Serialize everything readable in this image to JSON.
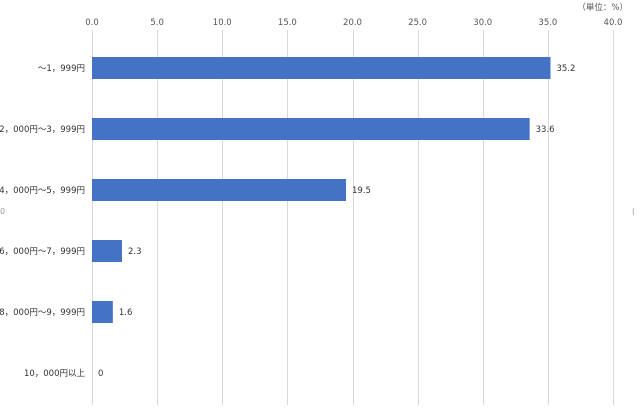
{
  "chart_data": {
    "type": "bar",
    "orientation": "horizontal",
    "unit_label": "（単位：%）",
    "categories": [
      "～1，999円",
      "2，000円～3，999円",
      "4，000円～5，999円",
      "6，000円～7，999円",
      "8，000円～9，999円",
      "10，000円以上"
    ],
    "values": [
      35.2,
      33.6,
      19.5,
      2.3,
      1.6,
      0
    ],
    "data_labels": [
      "35.2",
      "33.6",
      "19.5",
      "2.3",
      "1.6",
      "0"
    ],
    "xlim": [
      0,
      40
    ],
    "x_ticks": [
      "0.0",
      "5.0",
      "10.0",
      "15.0",
      "20.0",
      "25.0",
      "30.0",
      "35.0",
      "40.0"
    ],
    "x_tick_values": [
      0,
      5,
      10,
      15,
      20,
      25,
      30,
      35,
      40
    ],
    "grid": true,
    "axis_position": "top",
    "bar_color": "#4472c4",
    "edge_marks": [
      "0",
      "("
    ]
  }
}
